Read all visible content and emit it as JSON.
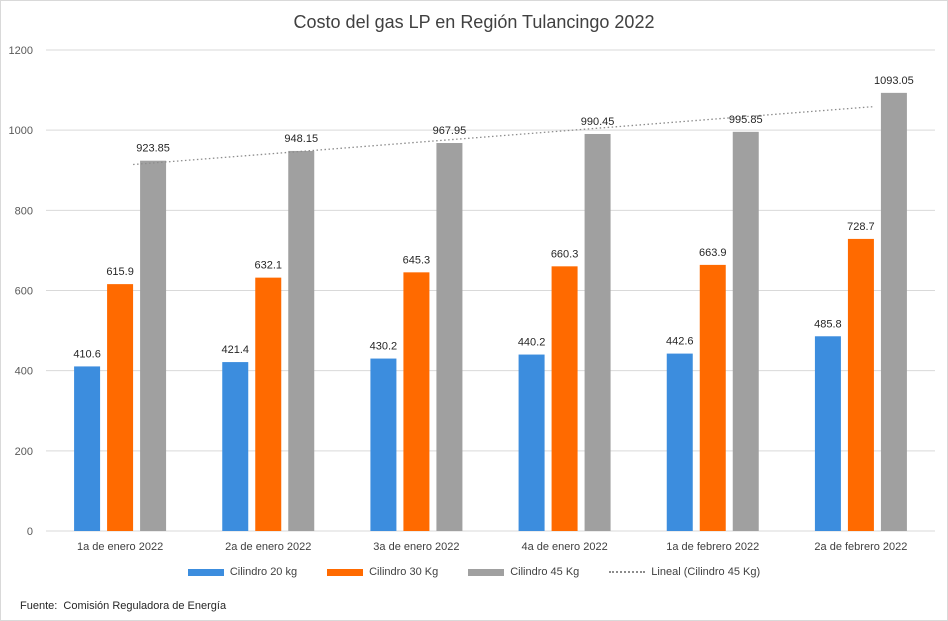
{
  "chart_data": {
    "type": "bar",
    "title": "Costo del gas LP en Región Tulancingo 2022",
    "categories": [
      "1a de enero 2022",
      "2a de enero 2022",
      "3a de enero 2022",
      "4a de enero 2022",
      "1a de febrero 2022",
      "2a de febrero 2022"
    ],
    "series": [
      {
        "name": "Cilindro 20 kg",
        "color": "#3c8dde",
        "values": [
          410.6,
          421.4,
          430.2,
          440.2,
          442.6,
          485.8
        ],
        "labels": [
          "410.6",
          "421.4",
          "430.2",
          "440.2",
          "442.6",
          "485.8"
        ]
      },
      {
        "name": "Cilindro 30 Kg",
        "color": "#ff6a00",
        "values": [
          615.9,
          632.1,
          645.3,
          660.3,
          663.9,
          728.7
        ],
        "labels": [
          "615.9",
          "632.1",
          "645.3",
          "660.3",
          "663.9",
          "728.7"
        ]
      },
      {
        "name": "Cilindro 45 Kg",
        "color": "#a0a0a0",
        "values": [
          923.85,
          948.15,
          967.95,
          990.45,
          995.85,
          1093.05
        ],
        "labels": [
          "923.85",
          "948.15",
          "967.95",
          "990.45",
          "995.85",
          "1093.05"
        ]
      }
    ],
    "trendline": {
      "name": "Lineal (Cilindro 45 Kg)",
      "series": "Cilindro 45 Kg",
      "type": "linear",
      "color": "#8c8c8c"
    },
    "ylim": [
      0,
      1200
    ],
    "yticks": [
      0,
      200,
      400,
      600,
      800,
      1000,
      1200
    ],
    "ytick_labels": [
      "0",
      "200",
      "400",
      "600",
      "800",
      "1000",
      "1200"
    ],
    "grid": true,
    "legend_position": "bottom",
    "xlabel": "",
    "ylabel": ""
  },
  "source": "Fuente:  Comisión Reguladora de Energía"
}
